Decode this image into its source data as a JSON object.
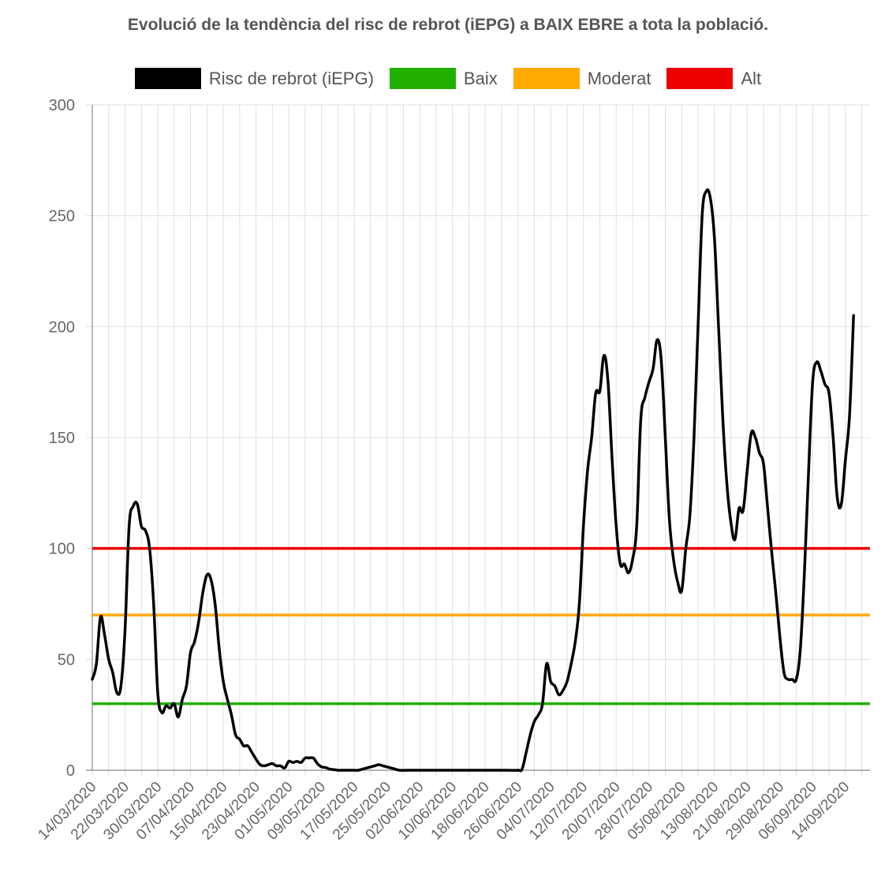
{
  "chart_data": {
    "type": "line",
    "title": "Evolució de la tendència del risc de rebrot (iEPG) a BAIX EBRE a tota la població.",
    "ylim": [
      0,
      300
    ],
    "y_ticks": [
      0,
      50,
      100,
      150,
      200,
      250,
      300
    ],
    "grid": true,
    "legend_position": "top",
    "x_start": "14/03/2020",
    "x_end": "20/09/2020",
    "x_tick_labels": [
      "14/03/2020",
      "22/03/2020",
      "30/03/2020",
      "07/04/2020",
      "15/04/2020",
      "23/04/2020",
      "01/05/2020",
      "09/05/2020",
      "17/05/2020",
      "25/05/2020",
      "02/06/2020",
      "10/06/2020",
      "18/06/2020",
      "26/06/2020",
      "04/07/2020",
      "12/07/2020",
      "20/07/2020",
      "28/07/2020",
      "05/08/2020",
      "13/08/2020",
      "21/08/2020",
      "29/08/2020",
      "06/09/2020",
      "14/09/2020"
    ],
    "series": [
      {
        "name": "Risc de rebrot (iEPG)",
        "color": "#000000",
        "points": [
          [
            "14/03/2020",
            41
          ],
          [
            "15/03/2020",
            48
          ],
          [
            "16/03/2020",
            69
          ],
          [
            "17/03/2020",
            61
          ],
          [
            "18/03/2020",
            50
          ],
          [
            "19/03/2020",
            44
          ],
          [
            "20/03/2020",
            35
          ],
          [
            "21/03/2020",
            38
          ],
          [
            "22/03/2020",
            63
          ],
          [
            "23/03/2020",
            110
          ],
          [
            "24/03/2020",
            119
          ],
          [
            "25/03/2020",
            120
          ],
          [
            "26/03/2020",
            110
          ],
          [
            "27/03/2020",
            108
          ],
          [
            "28/03/2020",
            100
          ],
          [
            "29/03/2020",
            75
          ],
          [
            "30/03/2020",
            35
          ],
          [
            "31/03/2020",
            26
          ],
          [
            "01/04/2020",
            29
          ],
          [
            "02/04/2020",
            28
          ],
          [
            "03/04/2020",
            30
          ],
          [
            "04/04/2020",
            24
          ],
          [
            "05/04/2020",
            32
          ],
          [
            "06/04/2020",
            38
          ],
          [
            "07/04/2020",
            53
          ],
          [
            "08/04/2020",
            58
          ],
          [
            "09/04/2020",
            67
          ],
          [
            "10/04/2020",
            80
          ],
          [
            "11/04/2020",
            88
          ],
          [
            "12/04/2020",
            86
          ],
          [
            "13/04/2020",
            75
          ],
          [
            "14/04/2020",
            55
          ],
          [
            "15/04/2020",
            40
          ],
          [
            "16/04/2020",
            32
          ],
          [
            "17/04/2020",
            25
          ],
          [
            "18/04/2020",
            16
          ],
          [
            "19/04/2020",
            14
          ],
          [
            "20/04/2020",
            11
          ],
          [
            "21/04/2020",
            11
          ],
          [
            "22/04/2020",
            8
          ],
          [
            "23/04/2020",
            5
          ],
          [
            "24/04/2020",
            2.5
          ],
          [
            "25/04/2020",
            2
          ],
          [
            "26/04/2020",
            2.5
          ],
          [
            "27/04/2020",
            3
          ],
          [
            "28/04/2020",
            2
          ],
          [
            "29/04/2020",
            2
          ],
          [
            "30/04/2020",
            1
          ],
          [
            "01/05/2020",
            4
          ],
          [
            "02/05/2020",
            3.5
          ],
          [
            "03/05/2020",
            4
          ],
          [
            "04/05/2020",
            3.5
          ],
          [
            "05/05/2020",
            5.5
          ],
          [
            "06/05/2020",
            5.5
          ],
          [
            "07/05/2020",
            5.5
          ],
          [
            "08/05/2020",
            3
          ],
          [
            "09/05/2020",
            1.5
          ],
          [
            "10/05/2020",
            1.2
          ],
          [
            "11/05/2020",
            0.5
          ],
          [
            "12/05/2020",
            0.3
          ],
          [
            "13/05/2020",
            0
          ],
          [
            "14/05/2020",
            0
          ],
          [
            "15/05/2020",
            0
          ],
          [
            "16/05/2020",
            0
          ],
          [
            "17/05/2020",
            0
          ],
          [
            "18/05/2020",
            0
          ],
          [
            "19/05/2020",
            0.5
          ],
          [
            "20/05/2020",
            1
          ],
          [
            "21/05/2020",
            1.5
          ],
          [
            "22/05/2020",
            2
          ],
          [
            "23/05/2020",
            2.5
          ],
          [
            "24/05/2020",
            2
          ],
          [
            "25/05/2020",
            1.5
          ],
          [
            "26/05/2020",
            1
          ],
          [
            "27/05/2020",
            0.5
          ],
          [
            "28/05/2020",
            0
          ],
          [
            "30/05/2020",
            0
          ],
          [
            "03/06/2020",
            0
          ],
          [
            "08/06/2020",
            0
          ],
          [
            "13/06/2020",
            0
          ],
          [
            "18/06/2020",
            0
          ],
          [
            "23/06/2020",
            0
          ],
          [
            "26/06/2020",
            0
          ],
          [
            "27/06/2020",
            0.5
          ],
          [
            "28/06/2020",
            8
          ],
          [
            "29/06/2020",
            16
          ],
          [
            "30/06/2020",
            22
          ],
          [
            "01/07/2020",
            25
          ],
          [
            "02/07/2020",
            30
          ],
          [
            "03/07/2020",
            48
          ],
          [
            "04/07/2020",
            40
          ],
          [
            "05/07/2020",
            38
          ],
          [
            "06/07/2020",
            34
          ],
          [
            "07/07/2020",
            36
          ],
          [
            "08/07/2020",
            40
          ],
          [
            "09/07/2020",
            48
          ],
          [
            "10/07/2020",
            58
          ],
          [
            "11/07/2020",
            75
          ],
          [
            "12/07/2020",
            110
          ],
          [
            "13/07/2020",
            135
          ],
          [
            "14/07/2020",
            150
          ],
          [
            "15/07/2020",
            170
          ],
          [
            "16/07/2020",
            171
          ],
          [
            "17/07/2020",
            187
          ],
          [
            "18/07/2020",
            175
          ],
          [
            "19/07/2020",
            140
          ],
          [
            "20/07/2020",
            110
          ],
          [
            "21/07/2020",
            93
          ],
          [
            "22/07/2020",
            93
          ],
          [
            "23/07/2020",
            89
          ],
          [
            "24/07/2020",
            95
          ],
          [
            "25/07/2020",
            110
          ],
          [
            "26/07/2020",
            158
          ],
          [
            "27/07/2020",
            168
          ],
          [
            "28/07/2020",
            175
          ],
          [
            "29/07/2020",
            181
          ],
          [
            "30/07/2020",
            194
          ],
          [
            "31/07/2020",
            185
          ],
          [
            "01/08/2020",
            150
          ],
          [
            "02/08/2020",
            113
          ],
          [
            "03/08/2020",
            95
          ],
          [
            "04/08/2020",
            85
          ],
          [
            "05/08/2020",
            81
          ],
          [
            "06/08/2020",
            100
          ],
          [
            "07/08/2020",
            115
          ],
          [
            "08/08/2020",
            150
          ],
          [
            "09/08/2020",
            200
          ],
          [
            "10/08/2020",
            250
          ],
          [
            "11/08/2020",
            261
          ],
          [
            "12/08/2020",
            258
          ],
          [
            "13/08/2020",
            240
          ],
          [
            "14/08/2020",
            200
          ],
          [
            "15/08/2020",
            160
          ],
          [
            "16/08/2020",
            130
          ],
          [
            "17/08/2020",
            112
          ],
          [
            "18/08/2020",
            104
          ],
          [
            "19/08/2020",
            118
          ],
          [
            "20/08/2020",
            117
          ],
          [
            "21/08/2020",
            135
          ],
          [
            "22/08/2020",
            152
          ],
          [
            "23/08/2020",
            150
          ],
          [
            "24/08/2020",
            143
          ],
          [
            "25/08/2020",
            138
          ],
          [
            "26/08/2020",
            118
          ],
          [
            "27/08/2020",
            98
          ],
          [
            "28/08/2020",
            80
          ],
          [
            "29/08/2020",
            60
          ],
          [
            "30/08/2020",
            44
          ],
          [
            "31/08/2020",
            41
          ],
          [
            "01/09/2020",
            41
          ],
          [
            "02/09/2020",
            41
          ],
          [
            "03/09/2020",
            55
          ],
          [
            "04/09/2020",
            90
          ],
          [
            "05/09/2020",
            135
          ],
          [
            "06/09/2020",
            175
          ],
          [
            "07/09/2020",
            184
          ],
          [
            "08/09/2020",
            180
          ],
          [
            "09/09/2020",
            174
          ],
          [
            "10/09/2020",
            170
          ],
          [
            "11/09/2020",
            150
          ],
          [
            "12/09/2020",
            123
          ],
          [
            "13/09/2020",
            120
          ],
          [
            "14/09/2020",
            140
          ],
          [
            "15/09/2020",
            160
          ],
          [
            "16/09/2020",
            205
          ]
        ]
      },
      {
        "name": "Baix",
        "color": "#22b000",
        "constant": 30
      },
      {
        "name": "Moderat",
        "color": "#ffaa00",
        "constant": 70
      },
      {
        "name": "Alt",
        "color": "#ee0000",
        "constant": 100
      }
    ]
  }
}
